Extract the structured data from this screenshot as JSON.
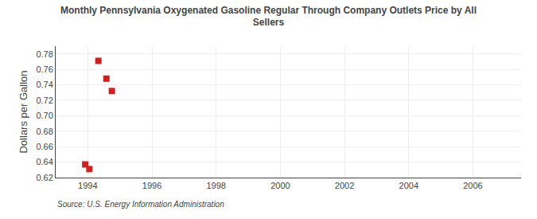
{
  "chart_data": {
    "type": "scatter",
    "title": "Monthly Pennsylvania Oxygenated Gasoline Regular Through Company Outlets Price by All\nSellers",
    "y_label": "Dollars per Gallon",
    "source": "Source: U.S. Energy Information Administration",
    "x": [
      1993.92,
      1994.05,
      1994.33,
      1994.58,
      1994.75
    ],
    "values": [
      0.637,
      0.631,
      0.771,
      0.748,
      0.732
    ],
    "color": "#cc2222",
    "marker": "square",
    "xlim": [
      1993.0,
      2007.5
    ],
    "ylim": [
      0.62,
      0.79
    ],
    "xticks": [
      1994,
      1996,
      1998,
      2000,
      2002,
      2004,
      2006
    ],
    "yticks": [
      0.62,
      0.64,
      0.66,
      0.68,
      {
        "value": 0.7,
        "label": "0.70"
      },
      0.72,
      0.74,
      0.76,
      0.78
    ],
    "grid": true
  }
}
